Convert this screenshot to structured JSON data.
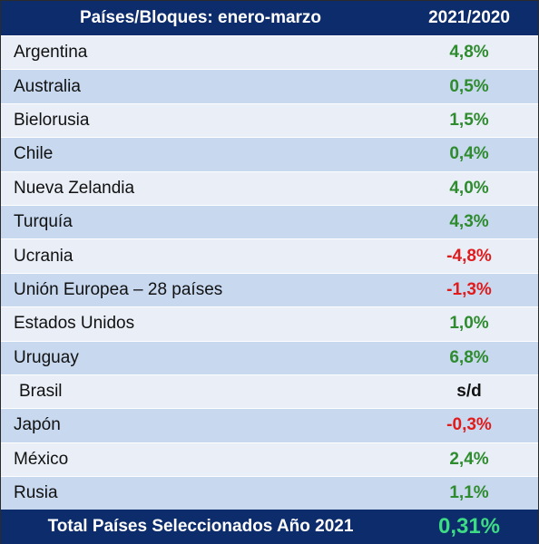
{
  "header": {
    "col1": "Países/Bloques: enero-marzo",
    "col2": "2021/2020"
  },
  "rows": [
    {
      "country": "Argentina",
      "value": "4,8%",
      "tone": "pos"
    },
    {
      "country": "Australia",
      "value": "0,5%",
      "tone": "pos"
    },
    {
      "country": "Bielorusia",
      "value": "1,5%",
      "tone": "pos"
    },
    {
      "country": "Chile",
      "value": "0,4%",
      "tone": "pos"
    },
    {
      "country": "Nueva Zelandia",
      "value": "4,0%",
      "tone": "pos"
    },
    {
      "country": "Turquía",
      "value": "4,3%",
      "tone": "pos"
    },
    {
      "country": "Ucrania",
      "value": "-4,8%",
      "tone": "neg"
    },
    {
      "country": "Unión Europea – 28 países",
      "value": "-1,3%",
      "tone": "neg"
    },
    {
      "country": "Estados Unidos",
      "value": "1,0%",
      "tone": "pos"
    },
    {
      "country": "Uruguay",
      "value": "6,8%",
      "tone": "pos"
    },
    {
      "country": "Brasil",
      "value": "s/d",
      "tone": "neutral"
    },
    {
      "country": "Japón",
      "value": "-0,3%",
      "tone": "neg"
    },
    {
      "country": "México",
      "value": "2,4%",
      "tone": "pos"
    },
    {
      "country": "Rusia",
      "value": "1,1%",
      "tone": "pos"
    }
  ],
  "footer": {
    "label": "Total Países Seleccionados Año 2021",
    "value": "0,31%"
  },
  "colors": {
    "header_bg": "#0d2c6c",
    "positive": "#2e8b2e",
    "negative": "#e01b1b",
    "total": "#3ddc84",
    "row_light": "#e9eef7",
    "row_dark": "#c7d8ef"
  }
}
